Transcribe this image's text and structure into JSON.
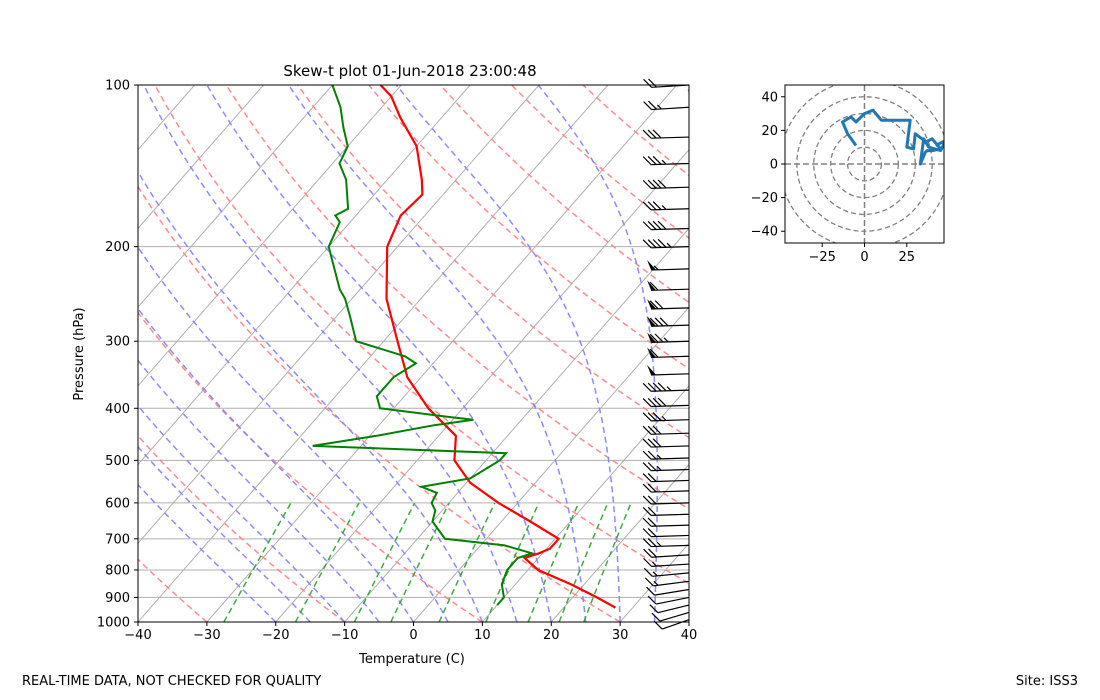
{
  "footer": {
    "left_note": "REAL-TIME DATA, NOT CHECKED FOR QUALITY",
    "site": "Site: ISS3"
  },
  "colors": {
    "temperature": "#ff0000",
    "dewpoint": "#008000",
    "dry_adiabat": "#ff7f7f",
    "moist_adiabat": "#7f7fff",
    "mixing_ratio": "#2ca02c",
    "hodograph": "#1f77b4"
  },
  "chart_data": [
    {
      "type": "line",
      "name": "skew-t",
      "title": "Skew-t plot 01-Jun-2018 23:00:48",
      "xlabel": "Temperature (C)",
      "ylabel": "Pressure (hPa)",
      "x_ticks": [
        -40,
        -30,
        -20,
        -10,
        0,
        10,
        20,
        30,
        40
      ],
      "y_ticks": [
        100,
        200,
        300,
        400,
        500,
        600,
        700,
        800,
        900,
        1000
      ],
      "xlim": [
        -40,
        40
      ],
      "ylim": [
        1000,
        100
      ],
      "y_scale": "log",
      "grid": true,
      "temperature": {
        "pressure": [
          940,
          900,
          850,
          800,
          760,
          745,
          730,
          700,
          650,
          600,
          550,
          500,
          450,
          400,
          350,
          300,
          250,
          200,
          175,
          160,
          150,
          130,
          115,
          105,
          100
        ],
        "value": [
          27.5,
          23.5,
          18,
          11.5,
          8,
          9.5,
          10.5,
          10.5,
          4.2,
          -2.8,
          -9.5,
          -14.6,
          -17.5,
          -25,
          -32,
          -38,
          -45,
          -51.5,
          -53.5,
          -53,
          -55,
          -60,
          -66,
          -70,
          -73
        ]
      },
      "dewpoint": {
        "pressure": [
          930,
          900,
          850,
          800,
          760,
          745,
          720,
          700,
          650,
          620,
          600,
          575,
          560,
          540,
          500,
          485,
          470,
          450,
          430,
          420,
          415,
          400,
          380,
          350,
          330,
          320,
          300,
          270,
          250,
          240,
          200,
          180,
          175,
          170,
          150,
          140,
          130,
          120,
          110,
          100
        ],
        "value": [
          10,
          10,
          8,
          7,
          7,
          8.5,
          3.5,
          -6,
          -10,
          -11,
          -12.5,
          -13,
          -16,
          -10,
          -8,
          -8,
          -37,
          -29,
          -22,
          -17,
          -21,
          -32,
          -34,
          -34,
          -32.5,
          -35,
          -44,
          -48,
          -51,
          -53,
          -60,
          -61.5,
          -63,
          -62,
          -66,
          -69,
          -70,
          -73,
          -76,
          -80
        ]
      },
      "wind_barbs": {
        "pressure": [
          100,
          110,
          125,
          140,
          155,
          170,
          185,
          200,
          220,
          240,
          260,
          280,
          300,
          320,
          345,
          370,
          395,
          420,
          445,
          470,
          495,
          520,
          545,
          570,
          600,
          630,
          660,
          690,
          720,
          750,
          780,
          810,
          840,
          870,
          900,
          930,
          960,
          990
        ],
        "speed_kt": [
          20,
          25,
          30,
          35,
          40,
          35,
          40,
          45,
          55,
          60,
          70,
          80,
          75,
          60,
          50,
          45,
          40,
          35,
          30,
          30,
          25,
          25,
          20,
          20,
          20,
          20,
          20,
          20,
          25,
          20,
          15,
          15,
          15,
          10,
          10,
          10,
          10,
          10
        ],
        "direction_deg": [
          260,
          260,
          265,
          265,
          265,
          265,
          265,
          265,
          265,
          265,
          265,
          265,
          265,
          265,
          265,
          265,
          265,
          265,
          265,
          265,
          265,
          265,
          265,
          265,
          265,
          265,
          265,
          265,
          265,
          260,
          260,
          255,
          250,
          245,
          240,
          235,
          230,
          225
        ]
      }
    },
    {
      "type": "line",
      "name": "hodograph",
      "x_ticks": [
        -25,
        0,
        25
      ],
      "y_ticks": [
        -40,
        -20,
        0,
        20,
        40
      ],
      "xlim": [
        -47,
        47
      ],
      "ylim": [
        -47,
        47
      ],
      "rings": [
        10,
        20,
        30,
        40,
        50
      ],
      "u": [
        -5,
        -10,
        -13,
        -8,
        -5,
        0,
        5,
        10,
        20,
        27,
        25,
        29,
        30,
        34,
        36,
        40,
        45,
        40,
        37,
        36,
        33,
        35,
        38,
        45,
        48,
        42
      ],
      "v": [
        11,
        18,
        25,
        28,
        25,
        30,
        32,
        26,
        26,
        26,
        10,
        9,
        18,
        15,
        13,
        15,
        9,
        8,
        8,
        7,
        0,
        15,
        10,
        8,
        14,
        11
      ]
    }
  ]
}
